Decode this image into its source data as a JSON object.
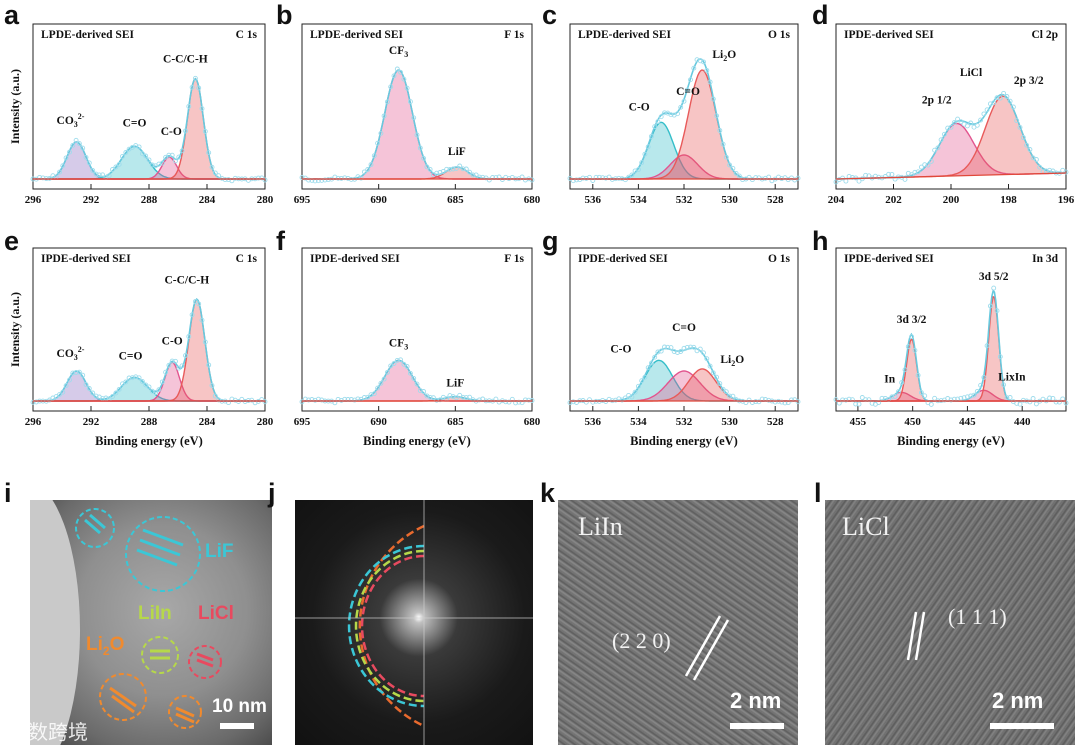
{
  "colors": {
    "envelope": "#67c9de",
    "points": "#9fdcec",
    "baseline": "#e0483a"
  },
  "chart_data": [
    {
      "id": "a",
      "type": "line",
      "region": "LPDE-derived SEI",
      "core": "C 1s",
      "xlim": [
        296,
        280
      ],
      "ticks": [
        296,
        292,
        288,
        284,
        280
      ],
      "ylabel": "Intensity (a.u.)",
      "xlabel": "",
      "peaks": [
        {
          "name": "CO3 2-",
          "base": "CO",
          "sub": "3",
          "sup": "2-",
          "center": 293.0,
          "height": 0.34,
          "width": 0.65,
          "color": "#8a6bbf"
        },
        {
          "name": "C=O",
          "base": "C=O",
          "center": 289.0,
          "height": 0.3,
          "width": 0.9,
          "color": "#35bec9"
        },
        {
          "name": "C-O",
          "base": "C-O",
          "center": 286.6,
          "height": 0.2,
          "width": 0.5,
          "color": "#e2558f"
        },
        {
          "name": "C-C/C-H",
          "base": "C-C/C-H",
          "center": 284.8,
          "height": 0.92,
          "width": 0.55,
          "color": "#e85a5a"
        }
      ]
    },
    {
      "id": "b",
      "type": "line",
      "region": "LPDE-derived SEI",
      "core": "F 1s",
      "xlim": [
        695,
        680
      ],
      "ticks": [
        695,
        690,
        685,
        680
      ],
      "xlabel": "",
      "peaks": [
        {
          "name": "CF3",
          "base": "CF",
          "sub": "3",
          "center": 688.7,
          "height": 1.0,
          "width": 0.9,
          "color": "#e2558f"
        },
        {
          "name": "LiF",
          "base": "LiF",
          "center": 684.9,
          "height": 0.11,
          "width": 0.7,
          "color": "#e85a5a"
        }
      ]
    },
    {
      "id": "c",
      "type": "line",
      "region": "LPDE-derived SEI",
      "core": "O 1s",
      "xlim": [
        537,
        527
      ],
      "ticks": [
        536,
        534,
        532,
        530,
        528
      ],
      "xlabel": "",
      "peaks": [
        {
          "name": "C-O",
          "base": "C-O",
          "center": 533.0,
          "height": 0.52,
          "width": 0.55,
          "color": "#35bec9"
        },
        {
          "name": "C=O",
          "base": "C=O",
          "center": 532.0,
          "height": 0.22,
          "width": 0.6,
          "color": "#e2558f"
        },
        {
          "name": "Li2O",
          "base": "Li",
          "sub": "2",
          "after": "O",
          "center": 531.2,
          "height": 1.0,
          "width": 0.6,
          "color": "#e85a5a"
        }
      ]
    },
    {
      "id": "d",
      "type": "line",
      "region": "IPDE-derived SEI",
      "core": "Cl 2p",
      "xlim": [
        204,
        196
      ],
      "ticks": [
        204,
        202,
        200,
        198,
        196
      ],
      "xlabel": "",
      "peaks": [
        {
          "name": "2p 1/2",
          "base": "2p 1/2",
          "center": 199.8,
          "height": 0.48,
          "width": 0.6,
          "color": "#e2558f"
        },
        {
          "name": "2p 3/2",
          "base": "2p 3/2",
          "center": 198.2,
          "height": 0.72,
          "width": 0.6,
          "color": "#e85a5a"
        }
      ],
      "extra_label": "LiCl"
    },
    {
      "id": "e",
      "type": "line",
      "region": "IPDE-derived SEI",
      "core": "C 1s",
      "xlim": [
        296,
        280
      ],
      "ticks": [
        296,
        292,
        288,
        284,
        280
      ],
      "ylabel": "Intensity (a.u.)",
      "xlabel": "Binding energy (eV)",
      "peaks": [
        {
          "name": "CO3 2-",
          "base": "CO",
          "sub": "3",
          "sup": "2-",
          "center": 293.0,
          "height": 0.28,
          "width": 0.65,
          "color": "#8a6bbf"
        },
        {
          "name": "C=O",
          "base": "C=O",
          "center": 289.0,
          "height": 0.22,
          "width": 0.9,
          "color": "#35bec9"
        },
        {
          "name": "C-O",
          "base": "C-O",
          "center": 286.4,
          "height": 0.36,
          "width": 0.5,
          "color": "#e2558f"
        },
        {
          "name": "C-C/C-H",
          "base": "C-C/C-H",
          "center": 284.7,
          "height": 0.95,
          "width": 0.55,
          "color": "#e85a5a"
        }
      ]
    },
    {
      "id": "f",
      "type": "line",
      "region": "IPDE-derived SEI",
      "core": "F 1s",
      "xlim": [
        695,
        680
      ],
      "ticks": [
        695,
        690,
        685,
        680
      ],
      "xlabel": "Binding energy (eV)",
      "peaks": [
        {
          "name": "CF3",
          "base": "CF",
          "sub": "3",
          "center": 688.7,
          "height": 0.38,
          "width": 0.9,
          "color": "#e2558f"
        },
        {
          "name": "LiF",
          "base": "LiF",
          "center": 685.0,
          "height": 0.04,
          "width": 0.7,
          "color": "#e85a5a"
        }
      ]
    },
    {
      "id": "g",
      "type": "line",
      "region": "IPDE-derived SEI",
      "core": "O 1s",
      "xlim": [
        537,
        527
      ],
      "ticks": [
        536,
        534,
        532,
        530,
        528
      ],
      "xlabel": "Binding energy (eV)",
      "peaks": [
        {
          "name": "C-O",
          "base": "C-O",
          "center": 533.1,
          "height": 0.38,
          "width": 0.6,
          "color": "#35bec9"
        },
        {
          "name": "C=O",
          "base": "C=O",
          "center": 532.0,
          "height": 0.28,
          "width": 0.7,
          "color": "#e2558f"
        },
        {
          "name": "Li2O",
          "base": "Li",
          "sub": "2",
          "after": "O",
          "center": 531.2,
          "height": 0.3,
          "width": 0.6,
          "color": "#e85a5a"
        }
      ]
    },
    {
      "id": "h",
      "type": "line",
      "region": "IPDE-derived SEI",
      "core": "In 3d",
      "xlim": [
        457,
        436
      ],
      "ticks": [
        455,
        450,
        445,
        440
      ],
      "xlabel": "Binding energy (eV)",
      "peaks": [
        {
          "name": "In",
          "base": "In",
          "center": 451.0,
          "height": 0.08,
          "width": 0.8,
          "color": "#e2558f"
        },
        {
          "name": "3d 3/2",
          "base": "3d 3/2",
          "center": 450.1,
          "height": 0.58,
          "width": 0.45,
          "color": "#e85a5a"
        },
        {
          "name": "LixIn",
          "base": "LixIn",
          "center": 443.5,
          "height": 0.1,
          "width": 0.8,
          "color": "#e2558f"
        },
        {
          "name": "3d 5/2",
          "base": "3d 5/2",
          "center": 442.6,
          "height": 0.98,
          "width": 0.45,
          "color": "#e85a5a"
        }
      ]
    }
  ],
  "images": {
    "i": {
      "label": "i",
      "phases": [
        "LiF",
        "LiIn",
        "LiCl",
        "Li2O"
      ],
      "scale": "10 nm"
    },
    "j": {
      "label": "j"
    },
    "k": {
      "label": "k",
      "phase": "LiIn",
      "plane": "(2 2 0)",
      "scale": "2 nm"
    },
    "l": {
      "label": "l",
      "phase": "LiCl",
      "plane": "(1 1 1)",
      "scale": "2 nm"
    }
  },
  "watermark": "大数跨境"
}
